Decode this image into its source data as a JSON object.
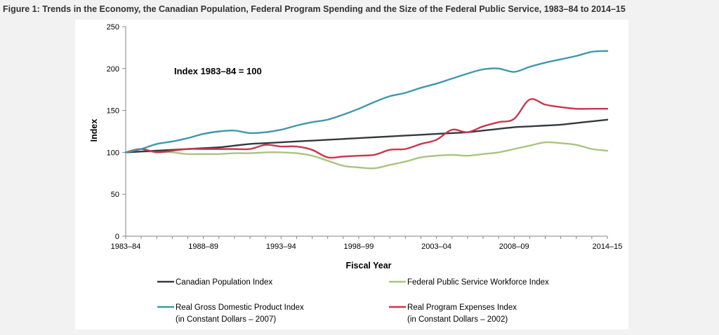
{
  "page": {
    "title": "Figure 1: Trends in the Economy, the Canadian Population, Federal Program Spending and the Size of the Federal Public Service, 1983–84 to 2014–15"
  },
  "chart_data": {
    "type": "line",
    "title": "Figure 1: Trends in the Economy, the Canadian Population, Federal Program Spending and the Size of the Federal Public Service, 1983–84 to 2014–15",
    "xlabel": "Fiscal Year",
    "ylabel": "Index",
    "ylim": [
      0,
      250
    ],
    "yticks": [
      0,
      50,
      100,
      150,
      200,
      250
    ],
    "xlim": [
      1983,
      2014
    ],
    "xtick_labels": [
      {
        "x": 1983,
        "label": "1983–84"
      },
      {
        "x": 1988,
        "label": "1988–89"
      },
      {
        "x": 1993,
        "label": "1993–94"
      },
      {
        "x": 1998,
        "label": "1998–99"
      },
      {
        "x": 2003,
        "label": "2003–04"
      },
      {
        "x": 2008,
        "label": "2008–09"
      },
      {
        "x": 2014,
        "label": "2014–15"
      }
    ],
    "annotation": "Index 1983–84 = 100",
    "legend_position": "bottom",
    "x": [
      1983,
      1984,
      1985,
      1986,
      1987,
      1988,
      1989,
      1990,
      1991,
      1992,
      1993,
      1994,
      1995,
      1996,
      1997,
      1998,
      1999,
      2000,
      2001,
      2002,
      2003,
      2004,
      2005,
      2006,
      2007,
      2008,
      2009,
      2010,
      2011,
      2012,
      2013,
      2014
    ],
    "series": [
      {
        "name": "Canadian Population Index",
        "name_line2": "",
        "color": "#333a40",
        "values": [
          100,
          101,
          102,
          103,
          104,
          105,
          106,
          108,
          110,
          111,
          112,
          113,
          114,
          115,
          116,
          117,
          118,
          119,
          120,
          121,
          122,
          123,
          124,
          126,
          128,
          130,
          131,
          132,
          133,
          135,
          137,
          139
        ]
      },
      {
        "name": "Federal Public Service Workforce Index",
        "name_line2": "",
        "color": "#a9c47f",
        "values": [
          100,
          101,
          101,
          100,
          98,
          98,
          98,
          99,
          99,
          100,
          100,
          99,
          96,
          90,
          84,
          82,
          81,
          85,
          89,
          94,
          96,
          97,
          96,
          98,
          100,
          104,
          108,
          112,
          111,
          109,
          104,
          102
        ]
      },
      {
        "name": "Real Gross Domestic Product Index",
        "name_line2": "(in Constant Dollars – 2007)",
        "color": "#3f97ad",
        "values": [
          100,
          104,
          110,
          113,
          117,
          122,
          125,
          126,
          123,
          124,
          127,
          132,
          136,
          139,
          145,
          152,
          160,
          167,
          171,
          177,
          182,
          188,
          194,
          199,
          200,
          196,
          202,
          207,
          211,
          215,
          220,
          221
        ]
      },
      {
        "name": "Real Program Expenses Index",
        "name_line2": "(in Constant Dollars – 2002)",
        "color": "#c9374c",
        "values": [
          100,
          104,
          100,
          102,
          104,
          104,
          104,
          104,
          104,
          109,
          107,
          107,
          103,
          94,
          95,
          96,
          97,
          103,
          104,
          110,
          115,
          127,
          124,
          131,
          136,
          140,
          163,
          157,
          154,
          152,
          152,
          152
        ]
      }
    ]
  }
}
